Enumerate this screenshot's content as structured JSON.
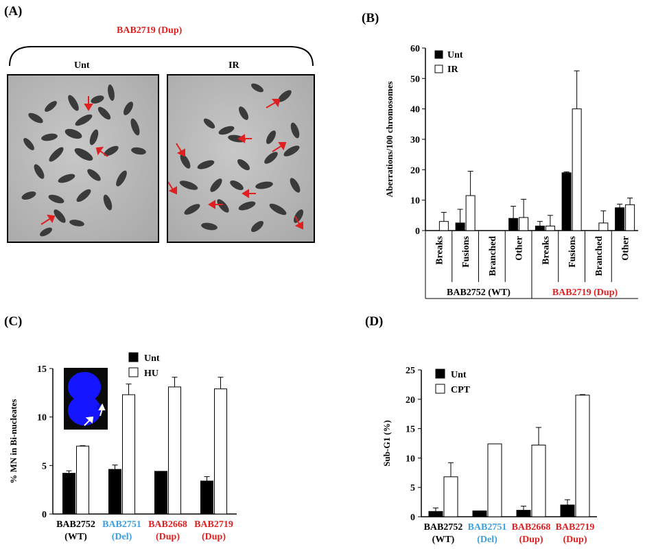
{
  "panelA": {
    "label": "(A)",
    "title": "BAB2719 (Dup)",
    "title_color": "#e02020",
    "images": [
      {
        "label": "Unt"
      },
      {
        "label": "IR"
      }
    ],
    "arrow_color": "#e02020"
  },
  "panelB": {
    "label": "(B)"
  },
  "panelC": {
    "label": "(C)"
  },
  "panelD": {
    "label": "(D)"
  },
  "chart_data": [
    {
      "id": "B",
      "type": "bar",
      "ylabel": "Aberrations/100 chromosomes",
      "ylim": [
        0,
        60
      ],
      "yticks": [
        0,
        10,
        20,
        30,
        40,
        50,
        60
      ],
      "categories": [
        "Breaks",
        "Fusions",
        "Branched",
        "Other",
        "Breaks",
        "Fusions",
        "Branched",
        "Other"
      ],
      "groups": [
        {
          "label": "BAB2752 (WT)",
          "color": "#000000",
          "span": [
            0,
            3
          ]
        },
        {
          "label": "BAB2719 (Dup)",
          "color": "#e02020",
          "span": [
            4,
            7
          ]
        }
      ],
      "legend": {
        "placement": "top-left",
        "entries": [
          "Unt",
          "IR"
        ]
      },
      "series": [
        {
          "name": "Unt",
          "fill": "#000000",
          "values": [
            0,
            2.5,
            0,
            4,
            1.5,
            19,
            0,
            7.5
          ],
          "errors": [
            0,
            4.5,
            0,
            4,
            1.5,
            0.3,
            0,
            1.2
          ]
        },
        {
          "name": "IR",
          "fill": "#ffffff",
          "values": [
            3,
            11.5,
            0,
            4.3,
            1.5,
            40,
            2.5,
            8.5
          ],
          "errors": [
            3,
            8,
            0,
            6,
            3.5,
            12.5,
            4,
            2.2
          ]
        }
      ]
    },
    {
      "id": "C",
      "type": "bar",
      "ylabel": "% MN in Bi-nucleates",
      "ylim": [
        0,
        15
      ],
      "yticks": [
        0,
        5,
        10,
        15
      ],
      "categories": [
        {
          "line1": "BAB2752",
          "line2": "(WT)",
          "color": "#000000"
        },
        {
          "line1": "BAB2751",
          "line2": "(Del)",
          "color": "#3aa0e0"
        },
        {
          "line1": "BAB2668",
          "line2": "(Dup)",
          "color": "#e02020"
        },
        {
          "line1": "BAB2719",
          "line2": "(Dup)",
          "color": "#e02020"
        }
      ],
      "legend": {
        "placement": "top-right",
        "entries": [
          "Unt",
          "HU"
        ]
      },
      "series": [
        {
          "name": "Unt",
          "fill": "#000000",
          "values": [
            4.2,
            4.6,
            4.4,
            3.4
          ],
          "errors": [
            0.25,
            0.45,
            0,
            0.45
          ]
        },
        {
          "name": "HU",
          "fill": "#ffffff",
          "values": [
            7.0,
            12.3,
            13.1,
            12.9
          ],
          "errors": [
            0.05,
            1.1,
            1.0,
            1.2
          ]
        }
      ]
    },
    {
      "id": "D",
      "type": "bar",
      "ylabel": "Sub-G1 (%)",
      "ylim": [
        0,
        25
      ],
      "yticks": [
        0,
        5,
        10,
        15,
        20,
        25
      ],
      "categories": [
        {
          "line1": "BAB2752",
          "line2": "(WT)",
          "color": "#000000"
        },
        {
          "line1": "BAB2751",
          "line2": "(Del)",
          "color": "#3aa0e0"
        },
        {
          "line1": "BAB2668",
          "line2": "(Dup)",
          "color": "#e02020"
        },
        {
          "line1": "BAB2719",
          "line2": "(Dup)",
          "color": "#e02020"
        }
      ],
      "legend": {
        "placement": "top-left",
        "entries": [
          "Unt",
          "CPT"
        ]
      },
      "series": [
        {
          "name": "Unt",
          "fill": "#000000",
          "values": [
            0.9,
            1.0,
            1.1,
            2.0
          ],
          "errors": [
            0.6,
            0,
            0.7,
            0.9
          ]
        },
        {
          "name": "CPT",
          "fill": "#ffffff",
          "values": [
            6.8,
            12.4,
            12.2,
            20.7
          ],
          "errors": [
            2.4,
            0,
            3.0,
            0.1
          ]
        }
      ]
    }
  ]
}
